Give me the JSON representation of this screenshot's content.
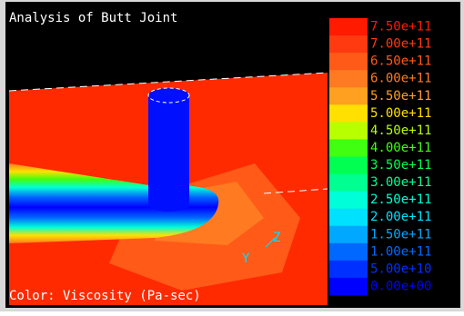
{
  "title": "Analysis of Butt Joint",
  "color_label": "Color: Viscosity (Pa-sec)",
  "axis_labels": {
    "y": "Y",
    "z": "Z"
  },
  "legend": [
    {
      "label": "7.50e+11",
      "color": "#ff1a00"
    },
    {
      "label": "7.00e+11",
      "color": "#ff3a10"
    },
    {
      "label": "6.50e+11",
      "color": "#ff5a18"
    },
    {
      "label": "6.00e+11",
      "color": "#ff7a20"
    },
    {
      "label": "5.50e+11",
      "color": "#ffa020"
    },
    {
      "label": "5.00e+11",
      "color": "#ffe000"
    },
    {
      "label": "4.50e+11",
      "color": "#b8ff00"
    },
    {
      "label": "4.00e+11",
      "color": "#40ff10"
    },
    {
      "label": "3.50e+11",
      "color": "#00ff50"
    },
    {
      "label": "3.00e+11",
      "color": "#00ff90"
    },
    {
      "label": "2.50e+11",
      "color": "#00ffd8"
    },
    {
      "label": "2.00e+11",
      "color": "#00e0ff"
    },
    {
      "label": "1.50e+11",
      "color": "#00a8ff"
    },
    {
      "label": "1.00e+11",
      "color": "#0068ff"
    },
    {
      "label": "5.00e+10",
      "color": "#0030ff"
    },
    {
      "label": "0.00e+00",
      "color": "#0000ff"
    }
  ]
}
